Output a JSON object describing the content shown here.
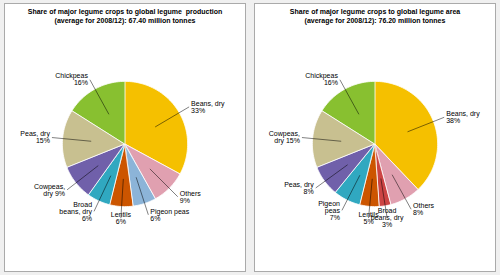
{
  "chart_data": [
    {
      "type": "pie",
      "title": "Share of major legume crops to global legume  production\n(average for 2008/12): 67.40 million tonnes",
      "categories": [
        "Beans, dry\n33%",
        "Others\n9%",
        "Pigeon peas\n6%",
        "Lentils\n6%",
        "Broad\nbeans, dry\n6%",
        "Cowpeas,\ndry 9%",
        "Peas, dry\n15%",
        "Chickpeas\n16%"
      ],
      "values": [
        33,
        9,
        6,
        6,
        6,
        9,
        15,
        16
      ],
      "colors": [
        "#F5C000",
        "#E0A0B0",
        "#8CB4D8",
        "#CC5500",
        "#30A8C0",
        "#7060AA",
        "#C8C090",
        "#88C030"
      ]
    },
    {
      "type": "pie",
      "title": "Share of major legume crops to global legume area\n(average for 2008/12): 76.20 million tonnes",
      "categories": [
        "Beans, dry\n38%",
        "Others\n8%",
        "Broad\nbeans, dry\n3%",
        "Lentils\n5%",
        "Pigeon\npeas\n7%",
        "Peas, dry\n8%",
        "Cowpeas,\ndry 15%",
        "Chickpeas\n16%"
      ],
      "values": [
        38,
        8,
        3,
        5,
        7,
        8,
        15,
        16
      ],
      "colors": [
        "#F5C000",
        "#E0A0B0",
        "#CC4444",
        "#CC5500",
        "#30A8C0",
        "#7060AA",
        "#C8C090",
        "#88C030"
      ]
    }
  ]
}
